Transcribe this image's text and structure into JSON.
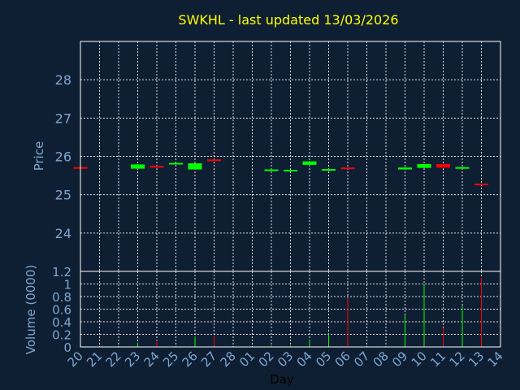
{
  "chart_data": {
    "title": "SWKHL - last updated 13/03/2026",
    "colors": {
      "background": "#0f1f33",
      "grid": "#ffffff",
      "up": "#00ff00",
      "down": "#ff0000",
      "text": "#7ea6d0",
      "title": "#ffff00"
    },
    "x_ticks": [
      "20",
      "21",
      "22",
      "23",
      "24",
      "25",
      "26",
      "27",
      "28",
      "01",
      "02",
      "03",
      "04",
      "05",
      "06",
      "07",
      "08",
      "09",
      "10",
      "11",
      "12",
      "13",
      "14"
    ],
    "xlabel": "Day",
    "panels": [
      {
        "type": "candlestick",
        "ylabel": "Price",
        "ylim": [
          23.0,
          29.0
        ],
        "y_ticks": [
          24,
          25,
          26,
          27,
          28
        ],
        "grid": true,
        "candles": [
          {
            "x": "20",
            "open": 25.72,
            "high": 25.72,
            "low": 25.69,
            "close": 25.7
          },
          {
            "x": "23",
            "open": 25.68,
            "high": 25.8,
            "low": 25.67,
            "close": 25.79
          },
          {
            "x": "24",
            "open": 25.75,
            "high": 25.75,
            "low": 25.7,
            "close": 25.71
          },
          {
            "x": "25",
            "open": 25.81,
            "high": 25.83,
            "low": 25.8,
            "close": 25.83
          },
          {
            "x": "26",
            "open": 25.66,
            "high": 25.82,
            "low": 25.65,
            "close": 25.82
          },
          {
            "x": "27",
            "open": 25.92,
            "high": 25.92,
            "low": 25.88,
            "close": 25.89
          },
          {
            "x": "02",
            "open": 25.64,
            "high": 25.67,
            "low": 25.63,
            "close": 25.66
          },
          {
            "x": "03",
            "open": 25.64,
            "high": 25.66,
            "low": 25.63,
            "close": 25.65
          },
          {
            "x": "04",
            "open": 25.78,
            "high": 25.88,
            "low": 25.77,
            "close": 25.87
          },
          {
            "x": "05",
            "open": 25.66,
            "high": 25.68,
            "low": 25.65,
            "close": 25.67
          },
          {
            "x": "06",
            "open": 25.71,
            "high": 25.71,
            "low": 25.67,
            "close": 25.68
          },
          {
            "x": "09",
            "open": 25.66,
            "high": 25.72,
            "low": 25.64,
            "close": 25.71
          },
          {
            "x": "10",
            "open": 25.7,
            "high": 25.8,
            "low": 25.69,
            "close": 25.8
          },
          {
            "x": "11",
            "open": 25.8,
            "high": 25.8,
            "low": 25.7,
            "close": 25.71
          },
          {
            "x": "12",
            "open": 25.7,
            "high": 25.73,
            "low": 25.69,
            "close": 25.72
          },
          {
            "x": "13",
            "open": 25.29,
            "high": 25.29,
            "low": 25.25,
            "close": 25.26
          }
        ]
      },
      {
        "type": "bar",
        "ylabel": "Volume (0000)",
        "ylim": [
          0,
          1.2
        ],
        "y_ticks": [
          "0",
          "0.2",
          "0.4",
          "0.6",
          "0.8",
          "1",
          "1.2"
        ],
        "grid": true,
        "bars": [
          {
            "x": "20",
            "value": 0.01,
            "direction": "down"
          },
          {
            "x": "23",
            "value": 0.07,
            "direction": "up"
          },
          {
            "x": "24",
            "value": 0.1,
            "direction": "down"
          },
          {
            "x": "25",
            "value": 0.01,
            "direction": "up"
          },
          {
            "x": "26",
            "value": 0.17,
            "direction": "up"
          },
          {
            "x": "27",
            "value": 0.18,
            "direction": "down"
          },
          {
            "x": "02",
            "value": 0.02,
            "direction": "up"
          },
          {
            "x": "03",
            "value": 0.02,
            "direction": "up"
          },
          {
            "x": "04",
            "value": 0.12,
            "direction": "up"
          },
          {
            "x": "05",
            "value": 0.21,
            "direction": "up"
          },
          {
            "x": "06",
            "value": 0.78,
            "direction": "down"
          },
          {
            "x": "09",
            "value": 0.5,
            "direction": "up"
          },
          {
            "x": "10",
            "value": 1.0,
            "direction": "up"
          },
          {
            "x": "11",
            "value": 0.3,
            "direction": "down"
          },
          {
            "x": "12",
            "value": 0.65,
            "direction": "up"
          },
          {
            "x": "13",
            "value": 1.1,
            "direction": "down"
          }
        ]
      }
    ]
  }
}
